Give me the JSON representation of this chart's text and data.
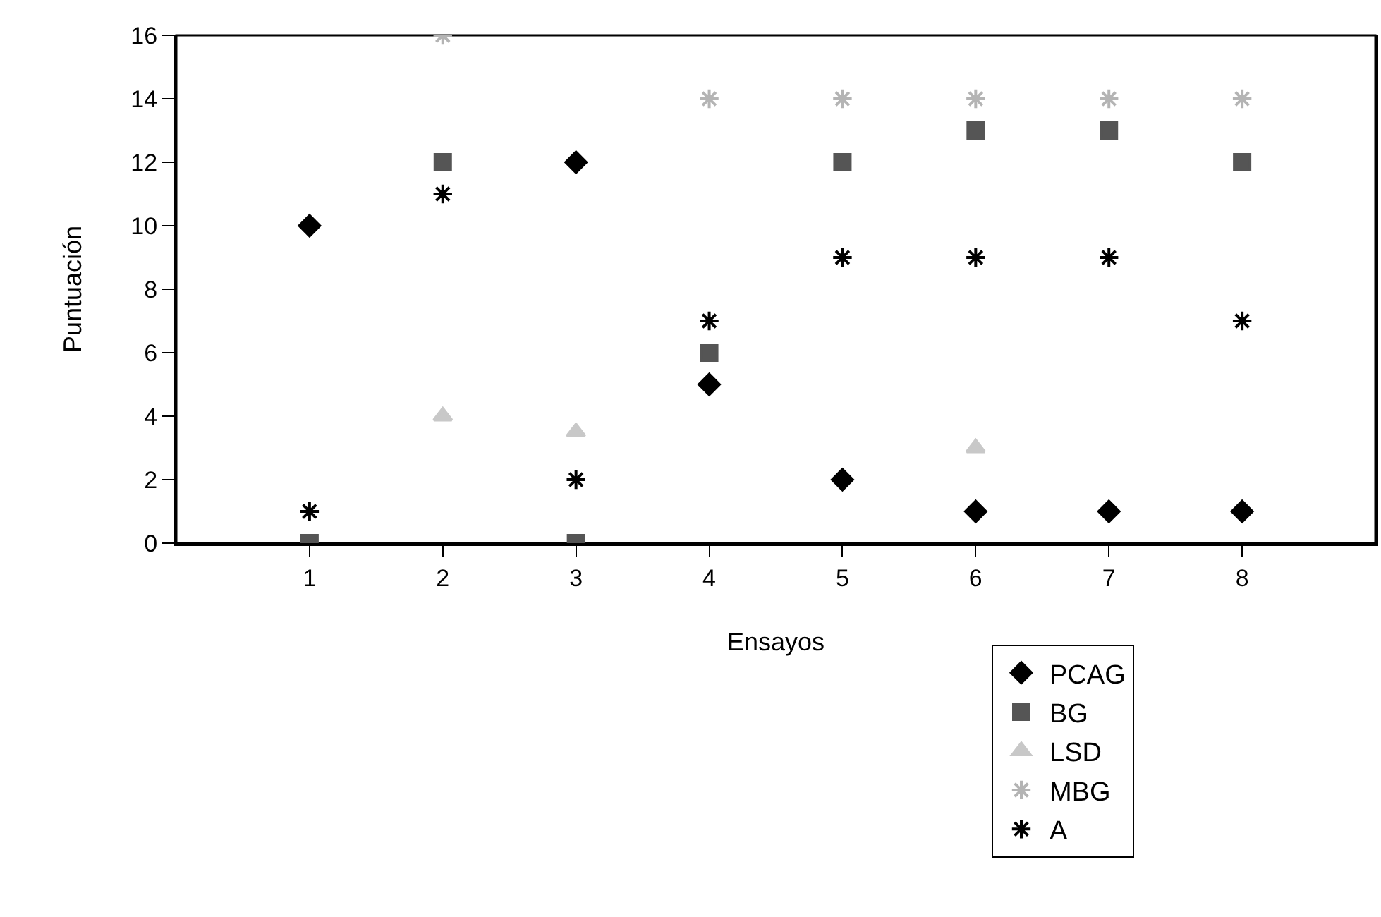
{
  "chart_data": {
    "type": "scatter",
    "xlabel": "Ensayos",
    "ylabel": "Puntuación",
    "xlim": [
      0,
      9
    ],
    "xticks": [
      1,
      2,
      3,
      4,
      5,
      6,
      7,
      8
    ],
    "ylim": [
      0,
      16
    ],
    "yticks": [
      0,
      2,
      4,
      6,
      8,
      10,
      12,
      14,
      16
    ],
    "x": [
      1,
      2,
      3,
      4,
      5,
      6,
      7,
      8
    ],
    "grid": false,
    "legend": "bottom",
    "series": [
      {
        "name": "PCAG",
        "color": "#000000",
        "marker": "diamond",
        "values": [
          10,
          null,
          12,
          5,
          2,
          1,
          1,
          1
        ]
      },
      {
        "name": "BG",
        "color": "#555555",
        "marker": "square",
        "values": [
          0,
          12,
          0,
          6,
          12,
          13,
          13,
          12
        ]
      },
      {
        "name": "LSD",
        "color": "#c8c8c8",
        "marker": "triangle",
        "values": [
          null,
          4,
          3.5,
          null,
          null,
          3,
          null,
          null
        ]
      },
      {
        "name": "MBG",
        "color": "#b4b4b4",
        "marker": "cross",
        "values": [
          null,
          16,
          null,
          14,
          14,
          14,
          14,
          14
        ]
      },
      {
        "name": "A",
        "color": "#000000",
        "marker": "cross",
        "values": [
          1,
          11,
          2,
          7,
          9,
          9,
          9,
          7
        ]
      }
    ]
  }
}
